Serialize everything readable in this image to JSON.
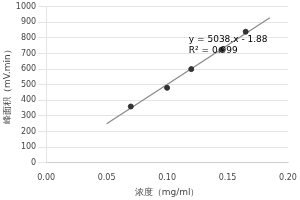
{
  "chart_data": {
    "type": "scatter",
    "xlabel": "浓度（mg/ml）",
    "ylabel": "峰面积（mV.min）",
    "series": [
      {
        "type": "scatter",
        "color": "#333333",
        "marker": "circle",
        "x": [
          0.07,
          0.1,
          0.12,
          0.145,
          0.165
        ],
        "values": [
          360,
          480,
          600,
          725,
          840
        ]
      },
      {
        "type": "line",
        "color": "#888888",
        "line_style": "solid",
        "x": [
          0.05,
          0.185
        ],
        "values": [
          250.02,
          930.15
        ]
      }
    ],
    "annotations": [
      {
        "x": 0.118,
        "y": 820,
        "text": "y = 5038.x - 1.88\nR² = 0.999"
      }
    ],
    "xlim": [
      0,
      0.2
    ],
    "ylim": [
      0,
      1000
    ],
    "xticks": [
      {
        "value": 0,
        "label": "0.00"
      },
      {
        "value": 0.05,
        "label": "0.05"
      },
      {
        "value": 0.1,
        "label": "0.10"
      },
      {
        "value": 0.15,
        "label": "0.15"
      },
      {
        "value": 0.2,
        "label": "0.20"
      }
    ],
    "yticks": [
      0,
      100,
      200,
      300,
      400,
      500,
      600,
      700,
      800,
      900,
      1000
    ],
    "grid": "y"
  }
}
